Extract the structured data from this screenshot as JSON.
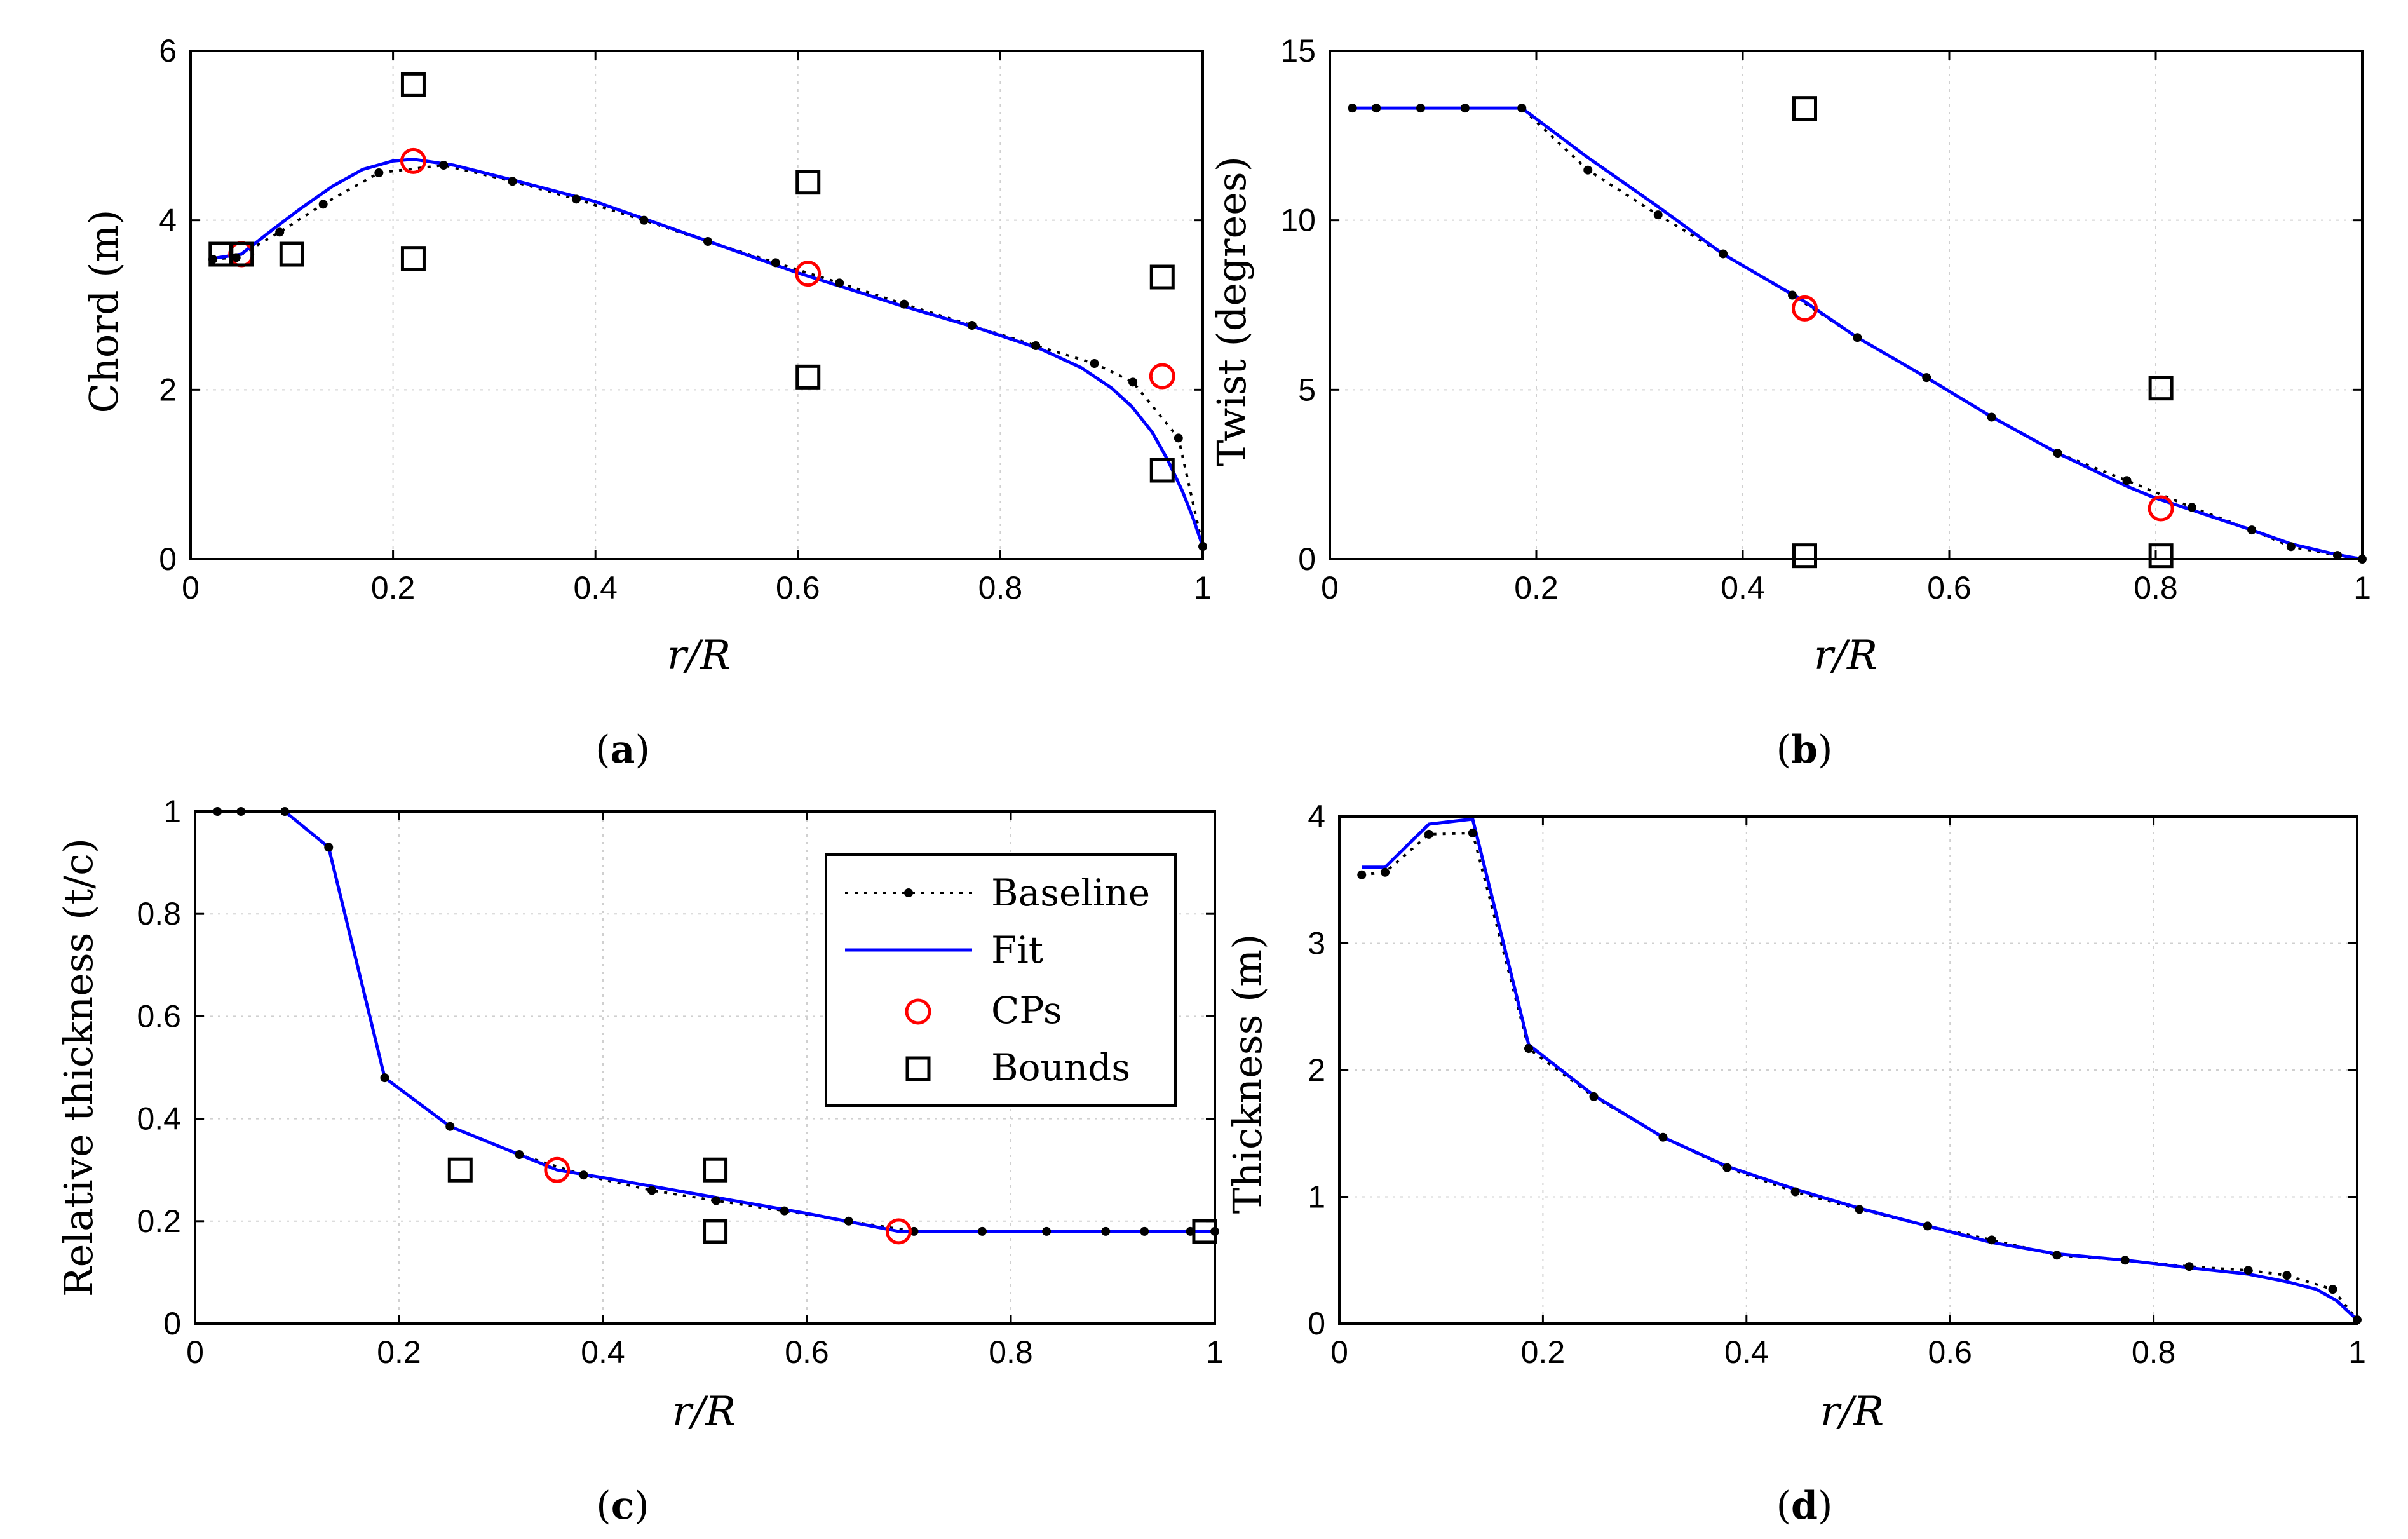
{
  "colors": {
    "fit": "#0000ff",
    "cp": "#ff0000",
    "baseline": "#000000",
    "bound": "#000000",
    "grid": "#d0d0d0"
  },
  "legend": {
    "baseline": "Baseline",
    "fit": "Fit",
    "cps": "CPs",
    "bounds": "Bounds"
  },
  "captions": {
    "a": {
      "open": "(",
      "letter": "a",
      "close": ")"
    },
    "b": {
      "open": "(",
      "letter": "b",
      "close": ")"
    },
    "c": {
      "open": "(",
      "letter": "c",
      "close": ")"
    },
    "d": {
      "open": "(",
      "letter": "d",
      "close": ")"
    }
  },
  "chart_data": [
    {
      "id": "a",
      "type": "line",
      "xlabel": "r/R",
      "ylabel": "Chord (m)",
      "xlim": [
        0,
        1
      ],
      "ylim": [
        0,
        6
      ],
      "xticks": [
        0,
        0.2,
        0.4,
        0.6,
        0.8,
        1
      ],
      "xtick_labels": [
        "0",
        "0.2",
        "0.4",
        "0.6",
        "0.8",
        "1"
      ],
      "yticks": [
        0,
        2,
        4,
        6
      ],
      "ytick_labels": [
        "0",
        "2",
        "4",
        "6"
      ],
      "grid": true,
      "series": [
        {
          "name": "Baseline",
          "x": [
            0.022,
            0.045,
            0.088,
            0.131,
            0.186,
            0.25,
            0.318,
            0.381,
            0.448,
            0.511,
            0.578,
            0.641,
            0.705,
            0.772,
            0.835,
            0.893,
            0.931,
            0.976,
            1.0
          ],
          "y": [
            3.54,
            3.56,
            3.86,
            4.19,
            4.56,
            4.65,
            4.46,
            4.25,
            4.0,
            3.75,
            3.5,
            3.26,
            3.01,
            2.76,
            2.52,
            2.31,
            2.09,
            1.43,
            0.15
          ]
        },
        {
          "name": "Fit",
          "x": [
            0.022,
            0.05,
            0.08,
            0.11,
            0.14,
            0.17,
            0.2,
            0.22,
            0.26,
            0.32,
            0.4,
            0.5,
            0.6,
            0.7,
            0.78,
            0.84,
            0.88,
            0.91,
            0.93,
            0.95,
            0.965,
            0.98,
            0.99,
            1.0
          ],
          "y": [
            3.55,
            3.6,
            3.88,
            4.15,
            4.4,
            4.6,
            4.7,
            4.72,
            4.65,
            4.47,
            4.22,
            3.8,
            3.38,
            3.0,
            2.72,
            2.48,
            2.26,
            2.02,
            1.8,
            1.5,
            1.18,
            0.8,
            0.5,
            0.15
          ]
        },
        {
          "name": "CPs",
          "x": [
            0.05,
            0.22,
            0.61,
            0.96
          ],
          "y": [
            3.6,
            4.7,
            3.37,
            2.16
          ]
        },
        {
          "name": "Bounds",
          "x": [
            0.03,
            0.05,
            0.1,
            0.22,
            0.22,
            0.61,
            0.61,
            0.96,
            0.96
          ],
          "y": [
            3.6,
            3.6,
            3.6,
            5.6,
            3.55,
            4.45,
            2.15,
            3.33,
            1.05
          ]
        }
      ]
    },
    {
      "id": "b",
      "type": "line",
      "xlabel": "r/R",
      "ylabel": "Twist (degrees)",
      "xlim": [
        0,
        1
      ],
      "ylim": [
        0,
        15
      ],
      "xticks": [
        0,
        0.2,
        0.4,
        0.6,
        0.8,
        1
      ],
      "xtick_labels": [
        "0",
        "0.2",
        "0.4",
        "0.6",
        "0.8",
        "1"
      ],
      "yticks": [
        0,
        5,
        10,
        15
      ],
      "ytick_labels": [
        "0",
        "5",
        "10",
        "15"
      ],
      "grid": true,
      "series": [
        {
          "name": "Baseline",
          "x": [
            0.022,
            0.045,
            0.088,
            0.131,
            0.186,
            0.25,
            0.318,
            0.381,
            0.448,
            0.511,
            0.578,
            0.641,
            0.705,
            0.772,
            0.835,
            0.893,
            0.931,
            0.976,
            1.0
          ],
          "y": [
            13.31,
            13.31,
            13.31,
            13.31,
            13.31,
            11.48,
            10.16,
            9.01,
            7.79,
            6.54,
            5.36,
            4.19,
            3.13,
            2.32,
            1.53,
            0.86,
            0.37,
            0.11,
            0.0
          ]
        },
        {
          "name": "Fit",
          "x": [
            0.022,
            0.186,
            0.25,
            0.318,
            0.381,
            0.46,
            0.511,
            0.578,
            0.641,
            0.705,
            0.772,
            0.8,
            0.835,
            0.893,
            0.931,
            0.976,
            1.0
          ],
          "y": [
            13.31,
            13.31,
            11.85,
            10.4,
            9.0,
            7.6,
            6.54,
            5.36,
            4.2,
            3.13,
            2.15,
            1.8,
            1.45,
            0.86,
            0.45,
            0.13,
            0.0
          ]
        },
        {
          "name": "CPs",
          "x": [
            0.46,
            0.805
          ],
          "y": [
            7.4,
            1.5
          ]
        },
        {
          "name": "Bounds",
          "x": [
            0.46,
            0.46,
            0.805,
            0.805
          ],
          "y": [
            13.3,
            0.1,
            5.05,
            0.1
          ]
        }
      ]
    },
    {
      "id": "c",
      "type": "line",
      "xlabel": "r/R",
      "ylabel": "Relative thickness (t/c)",
      "xlim": [
        0,
        1
      ],
      "ylim": [
        0,
        1
      ],
      "xticks": [
        0,
        0.2,
        0.4,
        0.6,
        0.8,
        1
      ],
      "xtick_labels": [
        "0",
        "0.2",
        "0.4",
        "0.6",
        "0.8",
        "1"
      ],
      "yticks": [
        0,
        0.2,
        0.4,
        0.6,
        0.8,
        1
      ],
      "ytick_labels": [
        "0",
        "0.2",
        "0.4",
        "0.6",
        "0.8",
        "1"
      ],
      "grid": true,
      "series": [
        {
          "name": "Baseline",
          "x": [
            0.022,
            0.045,
            0.088,
            0.131,
            0.186,
            0.25,
            0.318,
            0.381,
            0.448,
            0.511,
            0.578,
            0.641,
            0.705,
            0.772,
            0.835,
            0.893,
            0.931,
            0.976,
            1.0
          ],
          "y": [
            1.0,
            1.0,
            1.0,
            0.93,
            0.48,
            0.385,
            0.33,
            0.29,
            0.26,
            0.24,
            0.22,
            0.2,
            0.18,
            0.18,
            0.18,
            0.18,
            0.18,
            0.18,
            0.18
          ]
        },
        {
          "name": "Fit",
          "x": [
            0.022,
            0.045,
            0.088,
            0.131,
            0.186,
            0.25,
            0.318,
            0.355,
            0.4,
            0.5,
            0.6,
            0.69,
            0.75,
            0.85,
            0.95,
            1.0
          ],
          "y": [
            1.0,
            1.0,
            1.0,
            0.93,
            0.48,
            0.385,
            0.33,
            0.3,
            0.285,
            0.25,
            0.215,
            0.18,
            0.18,
            0.18,
            0.18,
            0.18
          ]
        },
        {
          "name": "CPs",
          "x": [
            0.355,
            0.69
          ],
          "y": [
            0.3,
            0.18
          ]
        },
        {
          "name": "Bounds",
          "x": [
            0.26,
            0.51,
            0.51,
            0.99
          ],
          "y": [
            0.3,
            0.3,
            0.18,
            0.18
          ]
        }
      ]
    },
    {
      "id": "d",
      "type": "line",
      "xlabel": "r/R",
      "ylabel": "Thickness (m)",
      "xlim": [
        0,
        1
      ],
      "ylim": [
        0,
        4
      ],
      "xticks": [
        0,
        0.2,
        0.4,
        0.6,
        0.8,
        1
      ],
      "xtick_labels": [
        "0",
        "0.2",
        "0.4",
        "0.6",
        "0.8",
        "1"
      ],
      "yticks": [
        0,
        1,
        2,
        3,
        4
      ],
      "ytick_labels": [
        "0",
        "1",
        "2",
        "3",
        "4"
      ],
      "grid": true,
      "series": [
        {
          "name": "Baseline",
          "x": [
            0.022,
            0.045,
            0.088,
            0.131,
            0.186,
            0.25,
            0.318,
            0.381,
            0.448,
            0.511,
            0.578,
            0.641,
            0.705,
            0.772,
            0.835,
            0.893,
            0.931,
            0.976,
            1.0
          ],
          "y": [
            3.54,
            3.56,
            3.86,
            3.87,
            2.17,
            1.79,
            1.47,
            1.23,
            1.04,
            0.9,
            0.77,
            0.66,
            0.54,
            0.5,
            0.45,
            0.42,
            0.38,
            0.27,
            0.03
          ]
        },
        {
          "name": "Fit",
          "x": [
            0.022,
            0.045,
            0.088,
            0.131,
            0.186,
            0.25,
            0.318,
            0.381,
            0.448,
            0.511,
            0.578,
            0.641,
            0.705,
            0.772,
            0.835,
            0.893,
            0.931,
            0.96,
            0.98,
            1.0
          ],
          "y": [
            3.6,
            3.6,
            3.94,
            3.98,
            2.2,
            1.8,
            1.47,
            1.24,
            1.06,
            0.91,
            0.77,
            0.64,
            0.55,
            0.5,
            0.44,
            0.39,
            0.33,
            0.27,
            0.18,
            0.03
          ]
        }
      ]
    }
  ]
}
